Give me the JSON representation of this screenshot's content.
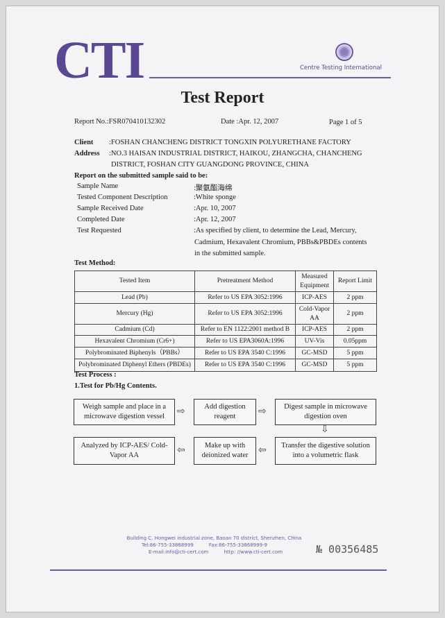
{
  "header": {
    "logo": "CTI",
    "company": "Centre Testing International",
    "title": "Test Report",
    "report_no": "Report No.:FSR070410132302",
    "date": "Date :Apr. 12, 2007",
    "page": "Page 1 of 5"
  },
  "client": {
    "client_label": "Client",
    "client_value": ":FOSHAN CHANCHENG DISTRICT TONGXIN POLYURETHANE FACTORY",
    "address_label": "Address",
    "address_line1": ":NO.3 HAISAN INDUSTRIAL DISTRICT, HAIKOU, ZHANGCHA, CHANCHENG",
    "address_line2": "DISTRICT, FOSHAN CITY GUANGDONG PROVINCE, CHINA"
  },
  "sample": {
    "heading": "Report on the submitted sample said to be:",
    "rows": [
      {
        "label": "Sample Name",
        "value": ":聚氨酯海绵"
      },
      {
        "label": "Tested Component Description",
        "value": ":White sponge"
      },
      {
        "label": "Sample Received Date",
        "value": ":Apr. 10, 2007"
      },
      {
        "label": "Completed Date",
        "value": ":Apr. 12, 2007"
      },
      {
        "label": "Test Requested",
        "value": ":As specified by client, to determine the Lead, Mercury,"
      }
    ],
    "test_requested_line2": "Cadmium, Hexavalent Chromium, PBBs&PBDEs contents",
    "test_requested_line3": "in the submitted sample."
  },
  "method": {
    "heading": "Test Method:",
    "columns": [
      "Tested Item",
      "Pretreatment Method",
      "Measured Equipment",
      "Report Limit"
    ],
    "rows": [
      [
        "Lead (Pb)",
        "Refer to US EPA 3052:1996",
        "ICP-AES",
        "2 ppm"
      ],
      [
        "Mercury (Hg)",
        "Refer to US EPA 3052:1996",
        "Cold-Vapor AA",
        "2 ppm"
      ],
      [
        "Cadmium (Cd)",
        "Refer to EN 1122:2001 method B",
        "ICP-AES",
        "2 ppm"
      ],
      [
        "Hexavalent Chromium (Cr6+)",
        "Refer to US EPA3060A:1996",
        "UV-Vis",
        "0.05ppm"
      ],
      [
        "Polybrominated Biphenyls（PBBs）",
        "Refer to US EPA 3540 C:1996",
        "GC-MSD",
        "5 ppm"
      ],
      [
        "Polybrominated Diphenyl Ethers (PBDEs)",
        "Refer to US EPA 3540 C:1996",
        "GC-MSD",
        "5 ppm"
      ]
    ]
  },
  "process": {
    "heading": "Test Process :",
    "subheading": "1.Test for Pb/Hg Contents.",
    "steps": [
      "Weigh sample and place in a microwave digestion vessel",
      "Add digestion reagent",
      "Digest sample in microwave digestion oven",
      "Transfer the digestive solution into a volumetric flask",
      "Make up with deionized water",
      "Analyzed by ICP-AES/ Cold-Vapor AA"
    ]
  },
  "footer": {
    "address": "Building C, Hongwei industrial zone, Baoan 70 district, Shenzhen, China",
    "phone": "Tel:86-755-33868999          Fax:86-755-33868999-9",
    "contact": "E-mail:info@cti-cert.com          http: //www.cti-cert.com",
    "serial": "№ 00356485"
  },
  "colors": {
    "brand": "#5a4892"
  }
}
